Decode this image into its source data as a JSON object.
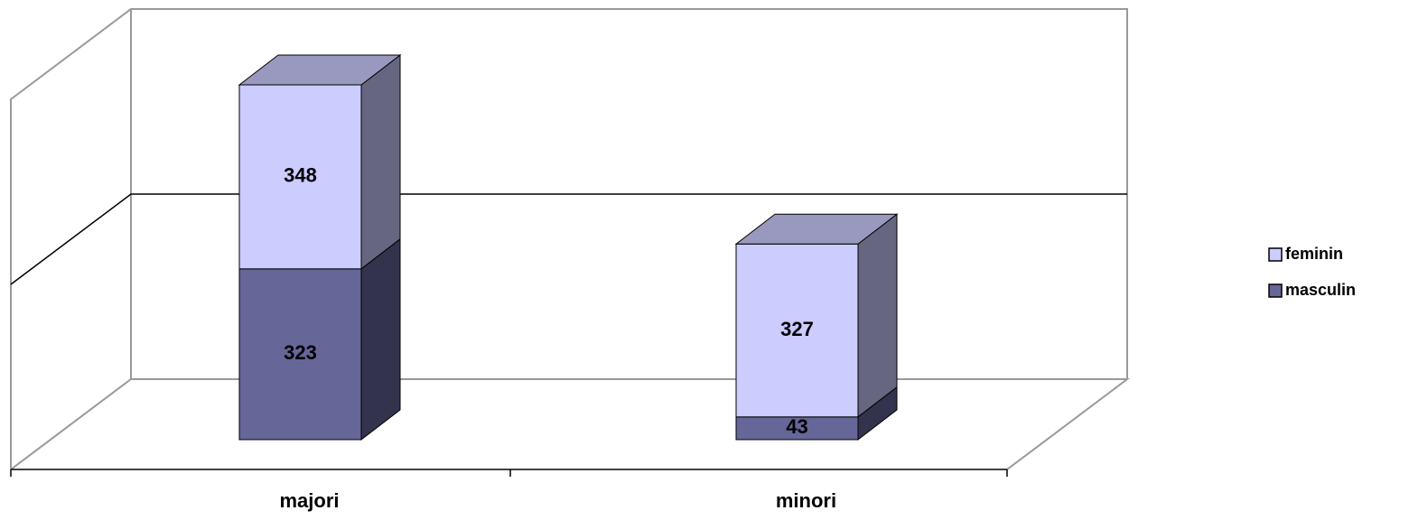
{
  "chart_data": {
    "type": "bar3d_stacked",
    "categories": [
      "majori",
      "minori"
    ],
    "series": [
      {
        "name": "masculin",
        "color": "#666699",
        "values": [
          323,
          43
        ]
      },
      {
        "name": "feminin",
        "color": "#ccccff",
        "values": [
          348,
          327
        ]
      }
    ],
    "ylim": [
      0,
      700
    ],
    "yticks": [
      0,
      350,
      700
    ],
    "grid": true
  }
}
